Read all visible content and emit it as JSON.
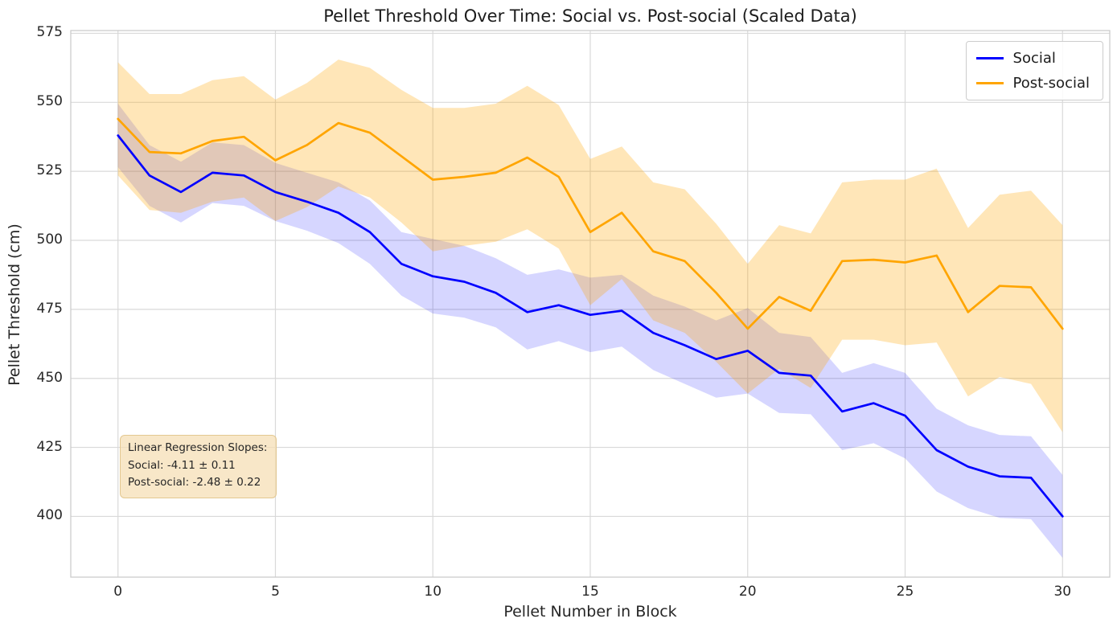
{
  "title": "Pellet Threshold Over Time: Social vs. Post-social (Scaled Data)",
  "xlabel": "Pellet Number in Block",
  "ylabel": "Pellet Threshold (cm)",
  "legend": {
    "items": [
      {
        "label": "Social",
        "color": "#0000ff"
      },
      {
        "label": "Post-social",
        "color": "#ffa500"
      }
    ]
  },
  "annotation": {
    "line1": "Linear Regression Slopes:",
    "line2": "Social: -4.11 ± 0.11",
    "line3": "Post-social: -2.48 ± 0.22",
    "bg_color": "#f5deb3"
  },
  "colors": {
    "social_line": "#0000ff",
    "post_social_line": "#ffa500",
    "grid": "#d9d9d9",
    "spine": "#cccccc",
    "text": "#262626"
  },
  "chart_data": {
    "type": "line",
    "title": "Pellet Threshold Over Time: Social vs. Post-social (Scaled Data)",
    "xlabel": "Pellet Number in Block",
    "ylabel": "Pellet Threshold (cm)",
    "grid": true,
    "legend_position": "upper right",
    "x": [
      0,
      1,
      2,
      3,
      4,
      5,
      6,
      7,
      8,
      9,
      10,
      11,
      12,
      13,
      14,
      15,
      16,
      17,
      18,
      19,
      20,
      21,
      22,
      23,
      24,
      25,
      26,
      27,
      28,
      29,
      30
    ],
    "xticks": [
      0,
      5,
      10,
      15,
      20,
      25,
      30
    ],
    "yticks": [
      400,
      425,
      450,
      475,
      500,
      525,
      550,
      575
    ],
    "xlim": [
      -1.5,
      31.5
    ],
    "ylim": [
      378,
      576
    ],
    "series": [
      {
        "name": "Social",
        "color": "#0000ff",
        "band_color": "rgba(0,0,255,0.16)",
        "values": [
          538,
          523.5,
          517.5,
          524.5,
          523.5,
          517.5,
          514,
          510,
          503,
          491.5,
          487,
          485,
          481,
          474,
          476.5,
          473,
          474.5,
          466.5,
          462,
          457,
          460,
          452,
          451,
          438,
          441,
          436.5,
          424,
          418,
          414.5,
          414,
          400
        ],
        "band_upper": [
          549.5,
          534.5,
          528.5,
          535.5,
          534.5,
          528,
          524.5,
          521,
          514.5,
          503,
          500.5,
          498,
          493.5,
          487.5,
          489.5,
          486.5,
          487.5,
          480,
          476,
          471,
          475.5,
          466.5,
          465,
          452,
          455.5,
          452,
          439,
          433,
          429.5,
          429,
          415
        ],
        "band_lower": [
          526.5,
          512.5,
          506.5,
          513.5,
          512.5,
          507,
          503.5,
          499,
          491.5,
          480,
          473.5,
          472,
          468.5,
          460.5,
          463.5,
          459.5,
          461.5,
          453,
          448,
          443,
          444.5,
          437.5,
          437,
          424,
          426.5,
          421,
          409,
          403,
          399.5,
          399,
          385
        ]
      },
      {
        "name": "Post-social",
        "color": "#ffa500",
        "band_color": "rgba(255,165,0,0.28)",
        "values": [
          544,
          532,
          531.5,
          536,
          537.5,
          529,
          534.5,
          542.5,
          539,
          530.5,
          522,
          523,
          524.5,
          530,
          523,
          503,
          510,
          496,
          492.5,
          481,
          468,
          479.5,
          474.5,
          492.5,
          493,
          492,
          494.5,
          474,
          483.5,
          483,
          468
        ],
        "band_upper": [
          564.5,
          553,
          553,
          558,
          559.5,
          551,
          557,
          565.5,
          562.5,
          554.5,
          548,
          548,
          549.5,
          556,
          549,
          529.5,
          534,
          521,
          518.5,
          506,
          491.5,
          505.5,
          502.5,
          521,
          522,
          522,
          526,
          504.5,
          516.5,
          518,
          505.5
        ],
        "band_lower": [
          523.5,
          511,
          510,
          514,
          515.5,
          507,
          512,
          519.5,
          515.5,
          506.5,
          496,
          498,
          499.5,
          504,
          497,
          476.5,
          486,
          471,
          466.5,
          456,
          444.5,
          453.5,
          446.5,
          464,
          464,
          462,
          463,
          443.5,
          450.5,
          448,
          430.5
        ]
      }
    ]
  }
}
